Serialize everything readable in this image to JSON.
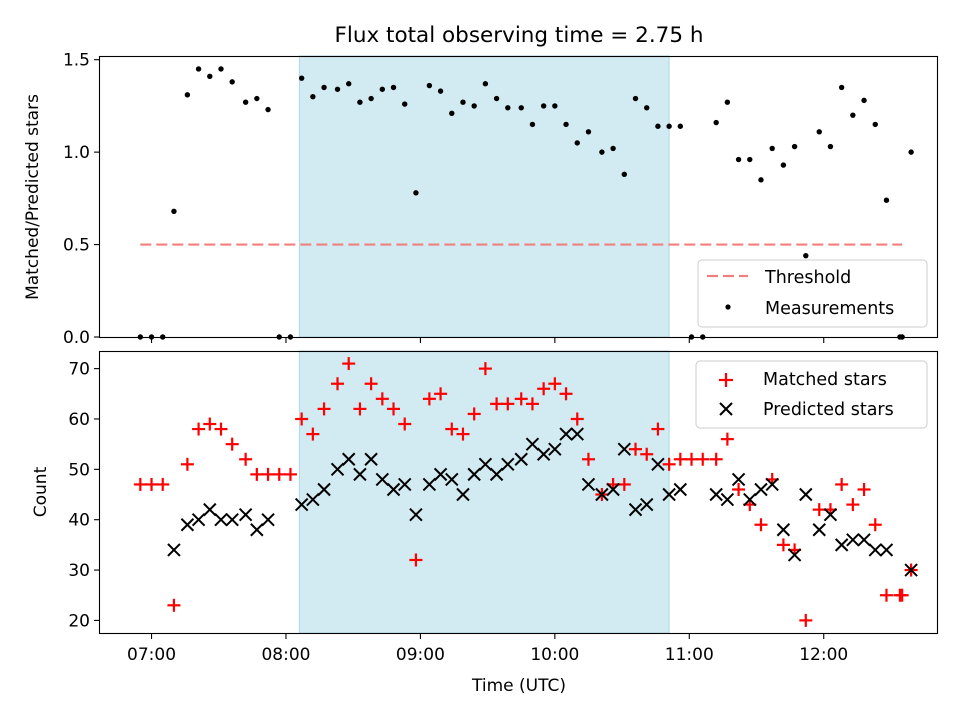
{
  "title": "Flux total observing time = 2.75 h",
  "chart_data": [
    {
      "type": "scatter",
      "ylabel": "Matched/Predicted stars",
      "xlabel": "",
      "ylim": [
        0,
        1.52
      ],
      "yticks": [
        0.0,
        0.5,
        1.0,
        1.5
      ],
      "ytick_labels": [
        "0.0",
        "0.5",
        "1.0",
        "1.5"
      ],
      "xlim": [
        "06:37",
        "12:51"
      ],
      "shaded_interval": [
        "08:06",
        "10:51"
      ],
      "threshold": {
        "name": "Threshold",
        "value": 0.5,
        "x_range": [
          "06:55",
          "12:35"
        ],
        "color": "#f08080"
      },
      "legend_position": "lower right",
      "series": [
        {
          "name": "Measurements",
          "marker": "dot",
          "color": "#000000",
          "points": [
            [
              "06:55",
              0.0
            ],
            [
              "07:00",
              0.0
            ],
            [
              "07:05",
              0.0
            ],
            [
              "07:10",
              0.68
            ],
            [
              "07:16",
              1.31
            ],
            [
              "07:21",
              1.45
            ],
            [
              "07:26",
              1.41
            ],
            [
              "07:31",
              1.45
            ],
            [
              "07:36",
              1.38
            ],
            [
              "07:42",
              1.27
            ],
            [
              "07:47",
              1.29
            ],
            [
              "07:52",
              1.23
            ],
            [
              "07:57",
              0.0
            ],
            [
              "08:02",
              0.0
            ],
            [
              "08:07",
              1.4
            ],
            [
              "08:12",
              1.3
            ],
            [
              "08:17",
              1.35
            ],
            [
              "08:23",
              1.34
            ],
            [
              "08:28",
              1.37
            ],
            [
              "08:33",
              1.27
            ],
            [
              "08:38",
              1.29
            ],
            [
              "08:43",
              1.34
            ],
            [
              "08:48",
              1.35
            ],
            [
              "08:53",
              1.26
            ],
            [
              "08:58",
              0.78
            ],
            [
              "09:04",
              1.36
            ],
            [
              "09:09",
              1.33
            ],
            [
              "09:14",
              1.21
            ],
            [
              "09:19",
              1.27
            ],
            [
              "09:24",
              1.25
            ],
            [
              "09:29",
              1.37
            ],
            [
              "09:34",
              1.29
            ],
            [
              "09:39",
              1.24
            ],
            [
              "09:45",
              1.24
            ],
            [
              "09:50",
              1.15
            ],
            [
              "09:55",
              1.25
            ],
            [
              "10:00",
              1.25
            ],
            [
              "10:05",
              1.15
            ],
            [
              "10:10",
              1.05
            ],
            [
              "10:15",
              1.11
            ],
            [
              "10:21",
              1.0
            ],
            [
              "10:26",
              1.02
            ],
            [
              "10:31",
              0.88
            ],
            [
              "10:36",
              1.29
            ],
            [
              "10:41",
              1.24
            ],
            [
              "10:46",
              1.14
            ],
            [
              "10:51",
              1.14
            ],
            [
              "10:56",
              1.14
            ],
            [
              "11:01",
              0.0
            ],
            [
              "11:06",
              0.0
            ],
            [
              "11:12",
              1.16
            ],
            [
              "11:17",
              1.27
            ],
            [
              "11:22",
              0.96
            ],
            [
              "11:27",
              0.96
            ],
            [
              "11:32",
              0.85
            ],
            [
              "11:37",
              1.02
            ],
            [
              "11:42",
              0.93
            ],
            [
              "11:47",
              1.03
            ],
            [
              "11:52",
              0.44
            ],
            [
              "11:58",
              1.11
            ],
            [
              "12:03",
              1.03
            ],
            [
              "12:08",
              1.35
            ],
            [
              "12:13",
              1.2
            ],
            [
              "12:18",
              1.28
            ],
            [
              "12:23",
              1.15
            ],
            [
              "12:28",
              0.74
            ],
            [
              "12:34",
              0.0
            ],
            [
              "12:35",
              0.0
            ],
            [
              "12:39",
              1.0
            ]
          ]
        }
      ]
    },
    {
      "type": "scatter",
      "ylabel": "Count",
      "xlabel": "Time (UTC)",
      "ylim": [
        17.5,
        73.5
      ],
      "yticks": [
        20,
        30,
        40,
        50,
        60,
        70
      ],
      "ytick_labels": [
        "20",
        "30",
        "40",
        "50",
        "60",
        "70"
      ],
      "xlim": [
        "06:37",
        "12:51"
      ],
      "xticks": [
        "07:00",
        "08:00",
        "09:00",
        "10:00",
        "11:00",
        "12:00"
      ],
      "xtick_labels": [
        "07:00",
        "08:00",
        "09:00",
        "10:00",
        "11:00",
        "12:00"
      ],
      "shaded_interval": [
        "08:06",
        "10:51"
      ],
      "legend_position": "upper right",
      "series": [
        {
          "name": "Matched stars",
          "marker": "plus",
          "color": "#ff0000",
          "points": [
            [
              "06:55",
              47
            ],
            [
              "07:00",
              47
            ],
            [
              "07:05",
              47
            ],
            [
              "07:10",
              23
            ],
            [
              "07:16",
              51
            ],
            [
              "07:21",
              58
            ],
            [
              "07:26",
              59
            ],
            [
              "07:31",
              58
            ],
            [
              "07:36",
              55
            ],
            [
              "07:42",
              52
            ],
            [
              "07:47",
              49
            ],
            [
              "07:52",
              49
            ],
            [
              "07:57",
              49
            ],
            [
              "08:02",
              49
            ],
            [
              "08:07",
              60
            ],
            [
              "08:12",
              57
            ],
            [
              "08:17",
              62
            ],
            [
              "08:23",
              67
            ],
            [
              "08:28",
              71
            ],
            [
              "08:33",
              62
            ],
            [
              "08:38",
              67
            ],
            [
              "08:43",
              64
            ],
            [
              "08:48",
              62
            ],
            [
              "08:53",
              59
            ],
            [
              "08:58",
              32
            ],
            [
              "09:04",
              64
            ],
            [
              "09:09",
              65
            ],
            [
              "09:14",
              58
            ],
            [
              "09:19",
              57
            ],
            [
              "09:24",
              61
            ],
            [
              "09:29",
              70
            ],
            [
              "09:34",
              63
            ],
            [
              "09:39",
              63
            ],
            [
              "09:45",
              64
            ],
            [
              "09:50",
              63
            ],
            [
              "09:55",
              66
            ],
            [
              "10:00",
              67
            ],
            [
              "10:05",
              65
            ],
            [
              "10:10",
              60
            ],
            [
              "10:15",
              52
            ],
            [
              "10:21",
              45
            ],
            [
              "10:26",
              47
            ],
            [
              "10:31",
              47
            ],
            [
              "10:36",
              54
            ],
            [
              "10:41",
              53
            ],
            [
              "10:46",
              58
            ],
            [
              "10:51",
              51
            ],
            [
              "10:56",
              52
            ],
            [
              "11:01",
              52
            ],
            [
              "11:06",
              52
            ],
            [
              "11:12",
              52
            ],
            [
              "11:17",
              56
            ],
            [
              "11:22",
              46
            ],
            [
              "11:27",
              43
            ],
            [
              "11:32",
              39
            ],
            [
              "11:37",
              48
            ],
            [
              "11:42",
              35
            ],
            [
              "11:47",
              34
            ],
            [
              "11:52",
              20
            ],
            [
              "11:58",
              42
            ],
            [
              "12:03",
              42
            ],
            [
              "12:08",
              47
            ],
            [
              "12:13",
              43
            ],
            [
              "12:18",
              46
            ],
            [
              "12:23",
              39
            ],
            [
              "12:28",
              25
            ],
            [
              "12:34",
              25
            ],
            [
              "12:35",
              25
            ],
            [
              "12:39",
              30
            ]
          ]
        },
        {
          "name": "Predicted stars",
          "marker": "x",
          "color": "#000000",
          "points": [
            [
              "07:10",
              34
            ],
            [
              "07:16",
              39
            ],
            [
              "07:21",
              40
            ],
            [
              "07:26",
              42
            ],
            [
              "07:31",
              40
            ],
            [
              "07:36",
              40
            ],
            [
              "07:42",
              41
            ],
            [
              "07:47",
              38
            ],
            [
              "07:52",
              40
            ],
            [
              "08:07",
              43
            ],
            [
              "08:12",
              44
            ],
            [
              "08:17",
              46
            ],
            [
              "08:23",
              50
            ],
            [
              "08:28",
              52
            ],
            [
              "08:33",
              49
            ],
            [
              "08:38",
              52
            ],
            [
              "08:43",
              48
            ],
            [
              "08:48",
              46
            ],
            [
              "08:53",
              47
            ],
            [
              "08:58",
              41
            ],
            [
              "09:04",
              47
            ],
            [
              "09:09",
              49
            ],
            [
              "09:14",
              48
            ],
            [
              "09:19",
              45
            ],
            [
              "09:24",
              49
            ],
            [
              "09:29",
              51
            ],
            [
              "09:34",
              49
            ],
            [
              "09:39",
              51
            ],
            [
              "09:45",
              52
            ],
            [
              "09:50",
              55
            ],
            [
              "09:55",
              53
            ],
            [
              "10:00",
              54
            ],
            [
              "10:05",
              57
            ],
            [
              "10:10",
              57
            ],
            [
              "10:15",
              47
            ],
            [
              "10:21",
              45
            ],
            [
              "10:26",
              46
            ],
            [
              "10:31",
              54
            ],
            [
              "10:36",
              42
            ],
            [
              "10:41",
              43
            ],
            [
              "10:46",
              51
            ],
            [
              "10:51",
              45
            ],
            [
              "10:56",
              46
            ],
            [
              "11:12",
              45
            ],
            [
              "11:17",
              44
            ],
            [
              "11:22",
              48
            ],
            [
              "11:27",
              44
            ],
            [
              "11:32",
              46
            ],
            [
              "11:37",
              47
            ],
            [
              "11:42",
              38
            ],
            [
              "11:47",
              33
            ],
            [
              "11:52",
              45
            ],
            [
              "11:58",
              38
            ],
            [
              "12:03",
              41
            ],
            [
              "12:08",
              35
            ],
            [
              "12:13",
              36
            ],
            [
              "12:18",
              36
            ],
            [
              "12:23",
              34
            ],
            [
              "12:28",
              34
            ],
            [
              "12:39",
              30
            ]
          ]
        }
      ]
    }
  ]
}
